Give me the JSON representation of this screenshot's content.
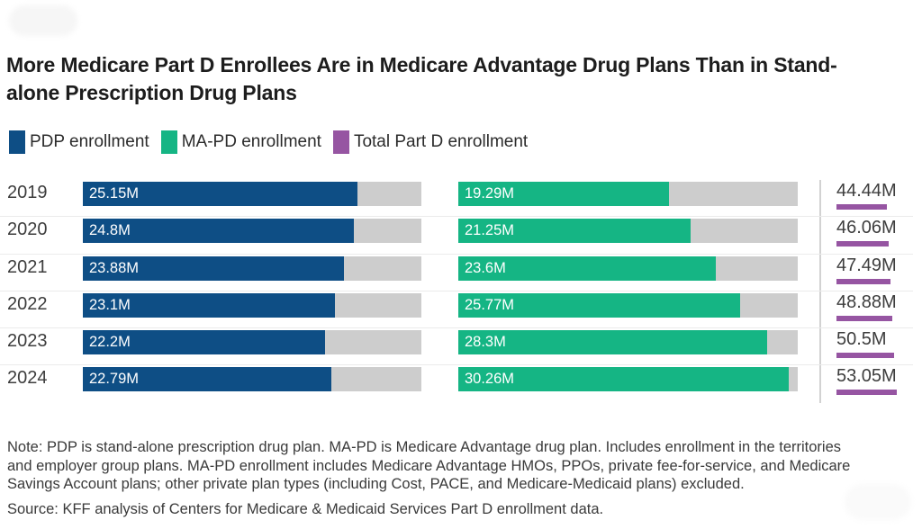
{
  "header": {
    "title": "More Medicare Part D Enrollees Are in Medicare Advantage Drug Plans Than in Stand-alone Prescription Drug Plans"
  },
  "legend": [
    {
      "label": "PDP enrollment",
      "color": "#0e4e85"
    },
    {
      "label": "MA-PD enrollment",
      "color": "#15b584"
    },
    {
      "label": "Total Part D enrollment",
      "color": "#9655a2"
    }
  ],
  "chart_data": {
    "type": "bar",
    "orientation": "horizontal",
    "title": "More Medicare Part D Enrollees Are in Medicare Advantage Drug Plans Than in Stand-alone Prescription Drug Plans",
    "categories": [
      "2019",
      "2020",
      "2021",
      "2022",
      "2023",
      "2024"
    ],
    "series": [
      {
        "name": "PDP enrollment",
        "color": "#0e4e85",
        "values": [
          25.15,
          24.8,
          23.88,
          23.1,
          22.2,
          22.79
        ],
        "labels": [
          "25.15M",
          "24.8M",
          "23.88M",
          "23.1M",
          "22.2M",
          "22.79M"
        ]
      },
      {
        "name": "MA-PD enrollment",
        "color": "#15b584",
        "values": [
          19.29,
          21.25,
          23.6,
          25.77,
          28.3,
          30.26
        ],
        "labels": [
          "19.29M",
          "21.25M",
          "23.6M",
          "25.77M",
          "28.3M",
          "30.26M"
        ]
      },
      {
        "name": "Total Part D enrollment",
        "color": "#9655a2",
        "values": [
          44.44,
          46.06,
          47.49,
          48.88,
          50.5,
          53.05
        ],
        "labels": [
          "44.44M",
          "46.06M",
          "47.49M",
          "48.88M",
          "50.5M",
          "53.05M"
        ]
      }
    ],
    "unit": "M",
    "xlim": [
      0,
      31
    ],
    "track_color": "#cdcdcd",
    "value_labels_inside_bars": true,
    "legend_position": "top",
    "grid": false
  },
  "notes": {
    "note": "Note: PDP is stand-alone prescription drug plan. MA-PD is Medicare Advantage drug plan. Includes enrollment in the territories and employer group plans. MA-PD enrollment includes Medicare Advantage HMOs, PPOs, private fee-for-service, and Medicare Savings Account plans; other private plan types (including Cost, PACE, and Medicare-Medicaid plans) excluded.",
    "source": "Source: KFF analysis of Centers for Medicare & Medicaid Services Part D enrollment data."
  }
}
